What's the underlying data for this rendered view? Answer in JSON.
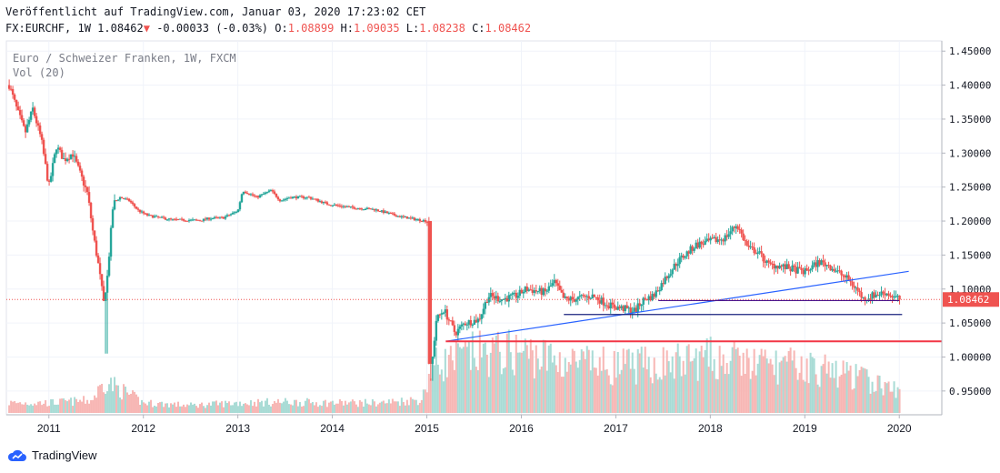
{
  "header": {
    "published": "Veröffentlicht auf TradingView.com, Januar 03, 2020 17:23:02 CET",
    "symbol": "FX:EURCHF, 1W",
    "last": "1.08462",
    "change": "-0.00033 (-0.03%)",
    "o_label": "O:",
    "o_value": "1.08899",
    "h_label": "H:",
    "h_value": "1.09035",
    "l_label": "L:",
    "l_value": "1.08238",
    "c_label": "C:",
    "c_value": "1.08462"
  },
  "overlay": {
    "instrument": "Euro / Schweizer Franken, 1W, FXCM",
    "volume": "Vol (20)"
  },
  "price_label": "1.08462",
  "footer": {
    "brand": "TradingView"
  },
  "colors": {
    "up": "#26a69a",
    "down": "#ef5350",
    "trendline": "#2962ff",
    "support_red": "#f23645",
    "support_navy": "#1a237e"
  },
  "chart_data": {
    "type": "candlestick",
    "interval": "1W",
    "x_ticks": [
      "2011",
      "2012",
      "2013",
      "2014",
      "2015",
      "2016",
      "2017",
      "2018",
      "2019",
      "2020"
    ],
    "y_ticks": [
      "1.45000",
      "1.40000",
      "1.35000",
      "1.30000",
      "1.25000",
      "1.20000",
      "1.15000",
      "1.10000",
      "1.05000",
      "1.00000",
      "0.95000"
    ],
    "ylim": [
      0.915,
      1.465
    ],
    "xlim": [
      2010.55,
      2020.45
    ],
    "current_price": 1.08462,
    "close_series": [
      [
        2010.58,
        1.4
      ],
      [
        2010.66,
        1.365
      ],
      [
        2010.75,
        1.33
      ],
      [
        2010.83,
        1.365
      ],
      [
        2010.92,
        1.32
      ],
      [
        2011.0,
        1.25
      ],
      [
        2011.08,
        1.31
      ],
      [
        2011.16,
        1.29
      ],
      [
        2011.25,
        1.3
      ],
      [
        2011.33,
        1.27
      ],
      [
        2011.41,
        1.24
      ],
      [
        2011.47,
        1.18
      ],
      [
        2011.53,
        1.13
      ],
      [
        2011.58,
        1.08
      ],
      [
        2011.62,
        1.12
      ],
      [
        2011.68,
        1.225
      ],
      [
        2011.75,
        1.235
      ],
      [
        2011.85,
        1.23
      ],
      [
        2011.95,
        1.215
      ],
      [
        2012.05,
        1.208
      ],
      [
        2012.3,
        1.202
      ],
      [
        2012.6,
        1.201
      ],
      [
        2012.7,
        1.204
      ],
      [
        2012.85,
        1.205
      ],
      [
        2013.0,
        1.215
      ],
      [
        2013.05,
        1.245
      ],
      [
        2013.2,
        1.235
      ],
      [
        2013.35,
        1.245
      ],
      [
        2013.45,
        1.23
      ],
      [
        2013.55,
        1.235
      ],
      [
        2013.75,
        1.235
      ],
      [
        2013.95,
        1.225
      ],
      [
        2014.2,
        1.22
      ],
      [
        2014.45,
        1.217
      ],
      [
        2014.7,
        1.207
      ],
      [
        2014.95,
        1.201
      ],
      [
        2015.02,
        1.2
      ],
      [
        2015.04,
        0.97
      ],
      [
        2015.1,
        1.055
      ],
      [
        2015.18,
        1.07
      ],
      [
        2015.3,
        1.035
      ],
      [
        2015.4,
        1.05
      ],
      [
        2015.55,
        1.055
      ],
      [
        2015.65,
        1.09
      ],
      [
        2015.8,
        1.085
      ],
      [
        2015.95,
        1.09
      ],
      [
        2016.05,
        1.1
      ],
      [
        2016.25,
        1.095
      ],
      [
        2016.35,
        1.11
      ],
      [
        2016.45,
        1.085
      ],
      [
        2016.55,
        1.085
      ],
      [
        2016.75,
        1.09
      ],
      [
        2016.95,
        1.075
      ],
      [
        2017.05,
        1.072
      ],
      [
        2017.2,
        1.068
      ],
      [
        2017.3,
        1.085
      ],
      [
        2017.4,
        1.09
      ],
      [
        2017.52,
        1.115
      ],
      [
        2017.65,
        1.14
      ],
      [
        2017.85,
        1.165
      ],
      [
        2018.0,
        1.17
      ],
      [
        2018.15,
        1.175
      ],
      [
        2018.28,
        1.195
      ],
      [
        2018.4,
        1.16
      ],
      [
        2018.5,
        1.155
      ],
      [
        2018.62,
        1.135
      ],
      [
        2018.7,
        1.135
      ],
      [
        2018.85,
        1.13
      ],
      [
        2019.0,
        1.125
      ],
      [
        2019.15,
        1.14
      ],
      [
        2019.25,
        1.135
      ],
      [
        2019.35,
        1.125
      ],
      [
        2019.45,
        1.115
      ],
      [
        2019.55,
        1.1
      ],
      [
        2019.62,
        1.085
      ],
      [
        2019.7,
        1.09
      ],
      [
        2019.85,
        1.095
      ],
      [
        2019.95,
        1.088
      ],
      [
        2020.01,
        1.0846
      ]
    ],
    "volume_level": [
      [
        2010.58,
        0.12
      ],
      [
        2011.0,
        0.12
      ],
      [
        2011.45,
        0.15
      ],
      [
        2011.6,
        0.38
      ],
      [
        2012.0,
        0.12
      ],
      [
        2012.5,
        0.09
      ],
      [
        2013.0,
        0.12
      ],
      [
        2013.5,
        0.13
      ],
      [
        2014.0,
        0.12
      ],
      [
        2014.5,
        0.12
      ],
      [
        2014.95,
        0.16
      ],
      [
        2015.05,
        0.55
      ],
      [
        2015.5,
        0.7
      ],
      [
        2016.0,
        0.72
      ],
      [
        2016.5,
        0.6
      ],
      [
        2017.0,
        0.55
      ],
      [
        2017.5,
        0.58
      ],
      [
        2018.0,
        0.65
      ],
      [
        2018.5,
        0.58
      ],
      [
        2019.0,
        0.55
      ],
      [
        2019.5,
        0.45
      ],
      [
        2020.01,
        0.25
      ]
    ],
    "lines": [
      {
        "kind": "trendline",
        "x1": 2015.22,
        "y1": 1.0235,
        "x2": 2020.1,
        "y2": 1.126
      },
      {
        "kind": "horizontal",
        "x1": 2015.2,
        "x2": 2020.45,
        "y": 1.023
      },
      {
        "kind": "horizontal",
        "x1": 2016.45,
        "x2": 2020.03,
        "y": 1.0625
      },
      {
        "kind": "horizontal",
        "x1": 2017.45,
        "x2": 2020.0,
        "y": 1.083
      }
    ]
  }
}
